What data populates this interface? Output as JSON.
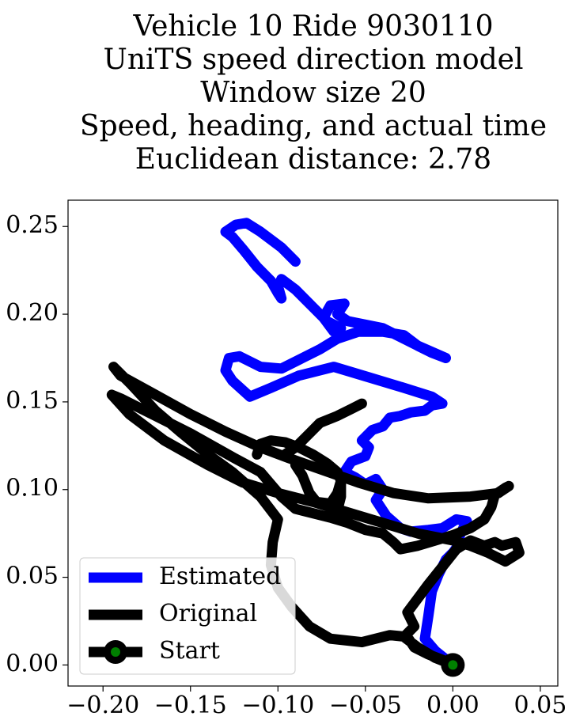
{
  "chart_data": {
    "type": "line",
    "title_lines": [
      "Vehicle 10 Ride 9030110",
      "UniTS speed direction model",
      "Window size 20",
      "Speed, heading, and actual time",
      "Euclidean distance: 2.78"
    ],
    "xlabel": "",
    "ylabel": "",
    "xlim": [
      -0.22,
      0.06
    ],
    "ylim": [
      -0.012,
      0.265
    ],
    "xticks": [
      -0.2,
      -0.15,
      -0.1,
      -0.05,
      0.0,
      0.05
    ],
    "xtick_labels": [
      "−0.20",
      "−0.15",
      "−0.10",
      "−0.05",
      "0.00",
      "0.05"
    ],
    "yticks": [
      0.0,
      0.05,
      0.1,
      0.15,
      0.2,
      0.25
    ],
    "ytick_labels": [
      "0.00",
      "0.05",
      "0.10",
      "0.15",
      "0.20",
      "0.25"
    ],
    "grid": false,
    "legend_position": "lower-left",
    "series": [
      {
        "name": "Estimated",
        "color": "#0000ff",
        "points": [
          [
            0.0,
            0.0
          ],
          [
            -0.01,
            0.008
          ],
          [
            -0.016,
            0.015
          ],
          [
            -0.014,
            0.028
          ],
          [
            -0.012,
            0.042
          ],
          [
            -0.008,
            0.052
          ],
          [
            -0.004,
            0.06
          ],
          [
            0.0,
            0.064
          ],
          [
            0.003,
            0.068
          ],
          [
            0.004,
            0.074
          ],
          [
            0.008,
            0.082
          ],
          [
            0.002,
            0.083
          ],
          [
            -0.006,
            0.078
          ],
          [
            -0.014,
            0.077
          ],
          [
            -0.024,
            0.076
          ],
          [
            -0.03,
            0.078
          ],
          [
            -0.038,
            0.085
          ],
          [
            -0.044,
            0.094
          ],
          [
            -0.04,
            0.1
          ],
          [
            -0.044,
            0.106
          ],
          [
            -0.05,
            0.103
          ],
          [
            -0.056,
            0.107
          ],
          [
            -0.062,
            0.11
          ],
          [
            -0.058,
            0.116
          ],
          [
            -0.05,
            0.119
          ],
          [
            -0.048,
            0.124
          ],
          [
            -0.052,
            0.128
          ],
          [
            -0.046,
            0.134
          ],
          [
            -0.04,
            0.136
          ],
          [
            -0.036,
            0.141
          ],
          [
            -0.03,
            0.142
          ],
          [
            -0.024,
            0.144
          ],
          [
            -0.016,
            0.145
          ],
          [
            -0.012,
            0.148
          ],
          [
            -0.006,
            0.149
          ],
          [
            -0.012,
            0.153
          ],
          [
            -0.028,
            0.158
          ],
          [
            -0.048,
            0.164
          ],
          [
            -0.068,
            0.17
          ],
          [
            -0.088,
            0.165
          ],
          [
            -0.104,
            0.158
          ],
          [
            -0.116,
            0.153
          ],
          [
            -0.126,
            0.162
          ],
          [
            -0.13,
            0.168
          ],
          [
            -0.128,
            0.175
          ],
          [
            -0.122,
            0.176
          ],
          [
            -0.116,
            0.173
          ],
          [
            -0.11,
            0.17
          ],
          [
            -0.098,
            0.169
          ],
          [
            -0.086,
            0.175
          ],
          [
            -0.076,
            0.18
          ],
          [
            -0.066,
            0.186
          ],
          [
            -0.054,
            0.19
          ],
          [
            -0.04,
            0.19
          ],
          [
            -0.028,
            0.188
          ],
          [
            -0.02,
            0.182
          ],
          [
            -0.012,
            0.178
          ],
          [
            -0.004,
            0.175
          ],
          [
            -0.02,
            0.182
          ],
          [
            -0.04,
            0.192
          ],
          [
            -0.06,
            0.196
          ],
          [
            -0.066,
            0.2
          ],
          [
            -0.062,
            0.206
          ],
          [
            -0.07,
            0.205
          ],
          [
            -0.074,
            0.198
          ],
          [
            -0.068,
            0.19
          ],
          [
            -0.064,
            0.192
          ],
          [
            -0.072,
            0.196
          ],
          [
            -0.08,
            0.204
          ],
          [
            -0.09,
            0.214
          ],
          [
            -0.098,
            0.22
          ],
          [
            -0.1,
            0.216
          ],
          [
            -0.098,
            0.209
          ],
          [
            -0.1,
            0.212
          ],
          [
            -0.104,
            0.219
          ],
          [
            -0.112,
            0.227
          ],
          [
            -0.12,
            0.237
          ],
          [
            -0.126,
            0.244
          ],
          [
            -0.13,
            0.247
          ],
          [
            -0.124,
            0.251
          ],
          [
            -0.118,
            0.252
          ],
          [
            -0.11,
            0.247
          ],
          [
            -0.098,
            0.238
          ],
          [
            -0.09,
            0.23
          ]
        ]
      },
      {
        "name": "Original",
        "color": "#000000",
        "points": [
          [
            0.0,
            0.0
          ],
          [
            -0.01,
            0.004
          ],
          [
            -0.02,
            0.01
          ],
          [
            -0.028,
            0.016
          ],
          [
            -0.022,
            0.022
          ],
          [
            -0.026,
            0.03
          ],
          [
            -0.02,
            0.038
          ],
          [
            -0.014,
            0.046
          ],
          [
            -0.006,
            0.056
          ],
          [
            0.002,
            0.066
          ],
          [
            0.01,
            0.071
          ],
          [
            0.018,
            0.068
          ],
          [
            0.024,
            0.07
          ],
          [
            0.028,
            0.068
          ],
          [
            0.036,
            0.07
          ],
          [
            0.038,
            0.064
          ],
          [
            0.03,
            0.059
          ],
          [
            0.02,
            0.064
          ],
          [
            0.01,
            0.068
          ],
          [
            0.0,
            0.071
          ],
          [
            -0.02,
            0.075
          ],
          [
            -0.04,
            0.081
          ],
          [
            -0.06,
            0.087
          ],
          [
            -0.08,
            0.093
          ],
          [
            -0.1,
            0.098
          ],
          [
            -0.12,
            0.104
          ],
          [
            -0.14,
            0.114
          ],
          [
            -0.165,
            0.128
          ],
          [
            -0.185,
            0.143
          ],
          [
            -0.195,
            0.154
          ],
          [
            -0.19,
            0.152
          ],
          [
            -0.17,
            0.142
          ],
          [
            -0.15,
            0.132
          ],
          [
            -0.125,
            0.118
          ],
          [
            -0.11,
            0.11
          ],
          [
            -0.104,
            0.103
          ],
          [
            -0.098,
            0.096
          ],
          [
            -0.09,
            0.089
          ],
          [
            -0.07,
            0.084
          ],
          [
            -0.06,
            0.081
          ],
          [
            -0.05,
            0.077
          ],
          [
            -0.04,
            0.075
          ],
          [
            -0.034,
            0.07
          ],
          [
            -0.03,
            0.066
          ],
          [
            -0.02,
            0.068
          ],
          [
            -0.01,
            0.071
          ],
          [
            0.0,
            0.074
          ],
          [
            0.01,
            0.078
          ],
          [
            0.018,
            0.083
          ],
          [
            0.022,
            0.09
          ],
          [
            0.024,
            0.097
          ],
          [
            0.03,
            0.101
          ],
          [
            0.032,
            0.102
          ],
          [
            0.026,
            0.098
          ],
          [
            0.01,
            0.096
          ],
          [
            -0.014,
            0.095
          ],
          [
            -0.034,
            0.098
          ],
          [
            -0.054,
            0.104
          ],
          [
            -0.074,
            0.111
          ],
          [
            -0.094,
            0.118
          ],
          [
            -0.11,
            0.124
          ],
          [
            -0.13,
            0.133
          ],
          [
            -0.15,
            0.143
          ],
          [
            -0.17,
            0.154
          ],
          [
            -0.19,
            0.165
          ],
          [
            -0.194,
            0.17
          ],
          [
            -0.184,
            0.16
          ],
          [
            -0.17,
            0.145
          ],
          [
            -0.156,
            0.133
          ],
          [
            -0.14,
            0.12
          ],
          [
            -0.126,
            0.11
          ],
          [
            -0.11,
            0.096
          ],
          [
            -0.1,
            0.083
          ],
          [
            -0.103,
            0.07
          ],
          [
            -0.104,
            0.057
          ],
          [
            -0.1,
            0.044
          ],
          [
            -0.092,
            0.033
          ],
          [
            -0.082,
            0.022
          ],
          [
            -0.07,
            0.015
          ],
          [
            -0.052,
            0.013
          ],
          [
            -0.036,
            0.017
          ],
          [
            -0.026,
            0.016
          ],
          [
            -0.022,
            0.01
          ],
          [
            -0.014,
            0.006
          ],
          [
            -0.006,
            0.003
          ],
          [
            0.0,
            0.0
          ]
        ]
      },
      {
        "name": "Original",
        "color": "#000000",
        "points": [
          [
            -0.09,
            0.114
          ],
          [
            -0.086,
            0.108
          ],
          [
            -0.082,
            0.098
          ],
          [
            -0.078,
            0.093
          ],
          [
            -0.07,
            0.092
          ],
          [
            -0.066,
            0.098
          ],
          [
            -0.064,
            0.105
          ],
          [
            -0.066,
            0.11
          ],
          [
            -0.072,
            0.115
          ],
          [
            -0.08,
            0.12
          ],
          [
            -0.088,
            0.124
          ],
          [
            -0.096,
            0.127
          ],
          [
            -0.104,
            0.128
          ],
          [
            -0.11,
            0.126
          ],
          [
            -0.112,
            0.12
          ]
        ]
      },
      {
        "name": "Original",
        "color": "#000000",
        "points": [
          [
            -0.096,
            0.12
          ],
          [
            -0.09,
            0.124
          ],
          [
            -0.082,
            0.132
          ],
          [
            -0.076,
            0.138
          ],
          [
            -0.066,
            0.142
          ],
          [
            -0.058,
            0.146
          ],
          [
            -0.052,
            0.149
          ]
        ]
      },
      {
        "name": "Original",
        "color": "#000000",
        "points": [
          [
            -0.064,
            0.105
          ],
          [
            -0.064,
            0.096
          ],
          [
            -0.066,
            0.088
          ]
        ]
      }
    ],
    "start_point": {
      "name": "Start",
      "x": 0.0,
      "y": 0.0,
      "outer_color": "#000000",
      "inner_color": "#008000"
    },
    "legend": [
      {
        "label": "Estimated",
        "color": "#0000ff",
        "marker": false
      },
      {
        "label": "Original",
        "color": "#000000",
        "marker": false
      },
      {
        "label": "Start",
        "color": "#000000",
        "marker": true,
        "marker_inner": "#008000"
      }
    ]
  }
}
